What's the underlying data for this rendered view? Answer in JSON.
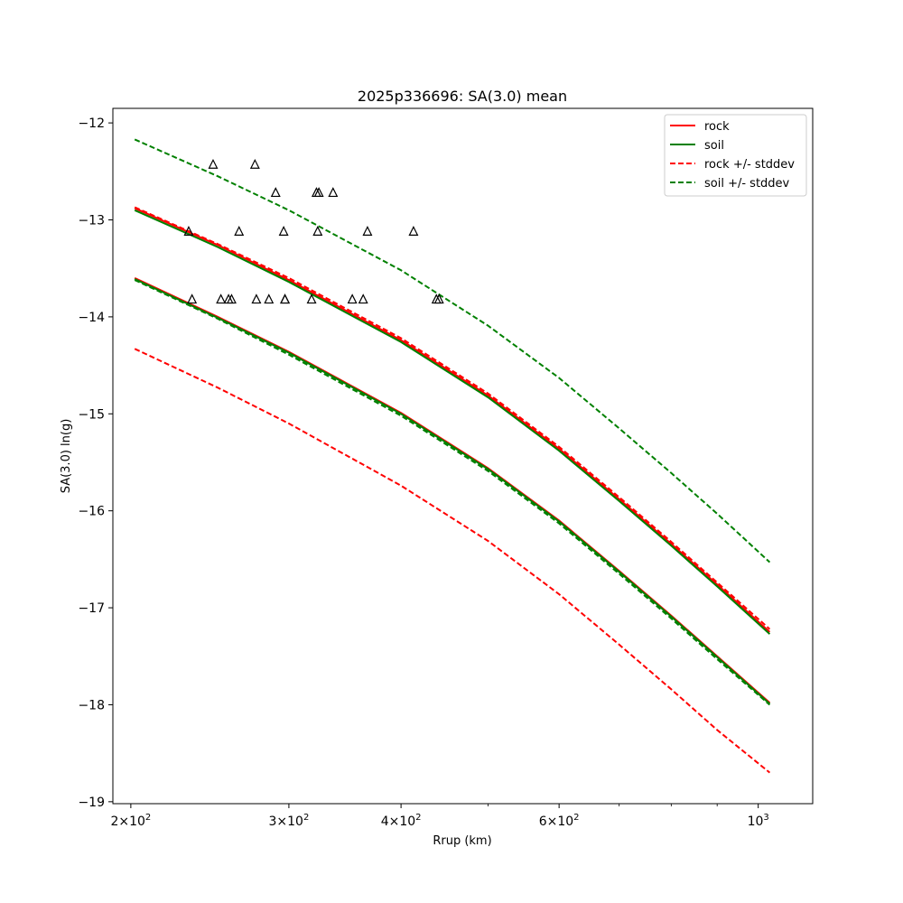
{
  "chart_data": {
    "type": "line",
    "title": "2025p336696: SA(3.0) mean",
    "xlabel": "Rrup (km)",
    "ylabel": "SA(3.0) ln(g)",
    "xscale": "log",
    "xlim": [
      191,
      1150
    ],
    "ylim": [
      -19.02,
      -11.85
    ],
    "x_major_ticks": [
      {
        "value": 200,
        "mantissa": "2",
        "base": "10",
        "exp": "2"
      },
      {
        "value": 300,
        "mantissa": "3",
        "base": "10",
        "exp": "2"
      },
      {
        "value": 400,
        "mantissa": "4",
        "base": "10",
        "exp": "2"
      },
      {
        "value": 600,
        "mantissa": "6",
        "base": "10",
        "exp": "2"
      },
      {
        "value": 1000,
        "mantissa": "",
        "base": "10",
        "exp": "3"
      }
    ],
    "x_minor_ticks": [
      500,
      700,
      800,
      900
    ],
    "y_ticks": [
      {
        "value": -12,
        "label": "−12"
      },
      {
        "value": -13,
        "label": "−13"
      },
      {
        "value": -14,
        "label": "−14"
      },
      {
        "value": -15,
        "label": "−15"
      },
      {
        "value": -16,
        "label": "−16"
      },
      {
        "value": -17,
        "label": "−17"
      },
      {
        "value": -18,
        "label": "−18"
      },
      {
        "value": -19,
        "label": "−19"
      }
    ],
    "grid": false,
    "legend": {
      "position": "top-right",
      "entries": [
        {
          "label": "rock",
          "color": "#ff0000",
          "style": "solid"
        },
        {
          "label": "soil",
          "color": "#008000",
          "style": "solid"
        },
        {
          "label": "rock +/- stddev",
          "color": "#ff0000",
          "style": "dashed"
        },
        {
          "label": "soil +/- stddev",
          "color": "#008000",
          "style": "dashed"
        }
      ]
    },
    "series": [
      {
        "name": "rock",
        "group": "rock",
        "color": "#ff0000",
        "style": "solid",
        "x": [
          202,
          250,
          300,
          400,
          500,
          600,
          700,
          800,
          900,
          1030
        ],
        "y": [
          -13.6,
          -14.0,
          -14.36,
          -14.99,
          -15.56,
          -16.1,
          -16.62,
          -17.08,
          -17.5,
          -17.98
        ]
      },
      {
        "name": "",
        "group": "rock",
        "color": "#ff0000",
        "style": "solid",
        "x": [
          202,
          250,
          300,
          400,
          500,
          600,
          700,
          800,
          900,
          1030
        ],
        "y": [
          -12.88,
          -13.26,
          -13.62,
          -14.24,
          -14.81,
          -15.36,
          -15.88,
          -16.34,
          -16.76,
          -17.25
        ]
      },
      {
        "name": "soil",
        "group": "soil",
        "color": "#008000",
        "style": "solid",
        "x": [
          202,
          250,
          300,
          400,
          500,
          600,
          700,
          800,
          900,
          1030
        ],
        "y": [
          -12.9,
          -13.28,
          -13.64,
          -14.26,
          -14.83,
          -15.38,
          -15.9,
          -16.36,
          -16.78,
          -17.27
        ]
      },
      {
        "name": "",
        "group": "soil",
        "color": "#008000",
        "style": "solid",
        "x": [
          202,
          250,
          300,
          400,
          500,
          600,
          700,
          800,
          900,
          1030
        ],
        "y": [
          -13.61,
          -14.01,
          -14.37,
          -15.0,
          -15.57,
          -16.11,
          -16.63,
          -17.09,
          -17.51,
          -17.99
        ]
      },
      {
        "name": "rock +/- stddev",
        "group": "rock-stddev",
        "color": "#ff0000",
        "style": "dashed",
        "x": [
          202,
          250,
          300,
          400,
          500,
          600,
          700,
          800,
          900,
          1030
        ],
        "y": [
          -12.87,
          -13.25,
          -13.6,
          -14.22,
          -14.79,
          -15.34,
          -15.86,
          -16.32,
          -16.74,
          -17.22
        ]
      },
      {
        "name": "",
        "group": "rock-stddev",
        "color": "#ff0000",
        "style": "dashed",
        "x": [
          202,
          250,
          300,
          400,
          500,
          600,
          700,
          800,
          900,
          1030
        ],
        "y": [
          -14.33,
          -14.73,
          -15.1,
          -15.74,
          -16.31,
          -16.86,
          -17.38,
          -17.84,
          -18.26,
          -18.7
        ]
      },
      {
        "name": "soil +/- stddev",
        "group": "soil-stddev",
        "color": "#008000",
        "style": "dashed",
        "x": [
          202,
          250,
          300,
          400,
          500,
          600,
          700,
          800,
          900,
          1030
        ],
        "y": [
          -12.17,
          -12.55,
          -12.9,
          -13.52,
          -14.09,
          -14.63,
          -15.15,
          -15.61,
          -16.03,
          -16.53
        ]
      },
      {
        "name": "",
        "group": "soil-stddev",
        "color": "#008000",
        "style": "dashed",
        "x": [
          202,
          250,
          300,
          400,
          500,
          600,
          700,
          800,
          900,
          1030
        ],
        "y": [
          -13.62,
          -14.02,
          -14.39,
          -15.02,
          -15.59,
          -16.13,
          -16.65,
          -17.11,
          -17.53,
          -18.0
        ]
      }
    ],
    "observations": {
      "marker": "triangle",
      "x": [
        247,
        275,
        232,
        290,
        296,
        322,
        324,
        323,
        336,
        367,
        413,
        264,
        234,
        259,
        297,
        252,
        257,
        276,
        285,
        297,
        318,
        353,
        363,
        438,
        441
      ],
      "y": [
        -12.43,
        -12.43,
        -13.12,
        -12.72,
        -13.12,
        -12.72,
        -12.72,
        -13.12,
        -12.72,
        -13.12,
        -13.12,
        -13.12,
        -13.82,
        -13.82,
        -13.82,
        -13.82,
        -13.82,
        -13.82,
        -13.82,
        -13.82,
        -13.82,
        -13.82,
        -13.82,
        -13.82,
        -13.82
      ]
    }
  }
}
